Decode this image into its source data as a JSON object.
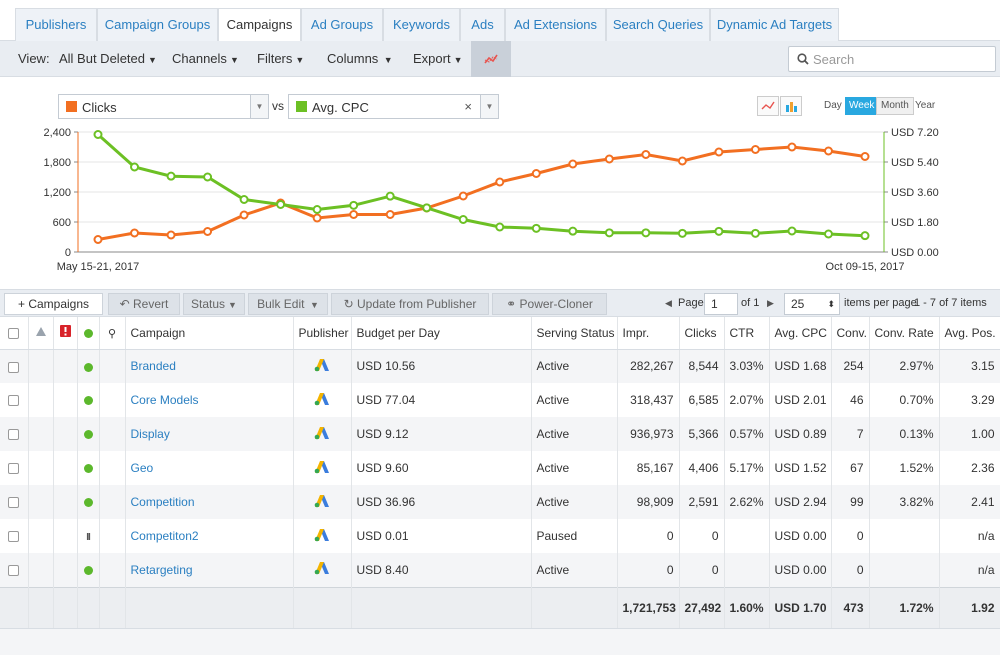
{
  "tabs": [
    "Publishers",
    "Campaign Groups",
    "Campaigns",
    "Ad Groups",
    "Keywords",
    "Ads",
    "Ad Extensions",
    "Search Queries",
    "Dynamic Ad Targets"
  ],
  "active_tab": "Campaigns",
  "toolbar": {
    "view_label": "View:",
    "view_value": "All But Deleted",
    "channels": "Channels",
    "filters": "Filters",
    "columns": "Columns",
    "export": "Export",
    "search_placeholder": "Search"
  },
  "chart_controls": {
    "metric1": "Clicks",
    "vs": "vs",
    "metric2": "Avg. CPC",
    "periods": [
      "Day",
      "Week",
      "Month",
      "Year"
    ],
    "active_period": "Week",
    "colors": {
      "metric1": "#f26f21",
      "metric2": "#6cc024"
    }
  },
  "chart_data": {
    "type": "line",
    "x_start_label": "May 15-21, 2017",
    "x_end_label": "Oct 09-15, 2017",
    "left_axis": {
      "ticks": [
        "2,400",
        "1,800",
        "1,200",
        "600",
        "0"
      ],
      "range": [
        0,
        2400
      ]
    },
    "right_axis": {
      "ticks": [
        "USD 7.20",
        "USD 5.40",
        "USD 3.60",
        "USD 1.80",
        "USD 0.00"
      ],
      "range": [
        0,
        7.2
      ]
    },
    "series": [
      {
        "name": "Clicks",
        "axis": "left",
        "color": "#f26f21",
        "values": [
          250,
          380,
          340,
          410,
          740,
          980,
          680,
          750,
          750,
          880,
          1120,
          1400,
          1570,
          1760,
          1860,
          1950,
          1820,
          2000,
          2050,
          2100,
          2020,
          1910
        ]
      },
      {
        "name": "Avg. CPC",
        "axis": "right",
        "color": "#6cc024",
        "values": [
          7.05,
          5.1,
          4.55,
          4.5,
          3.15,
          2.85,
          2.55,
          2.8,
          3.35,
          2.65,
          1.95,
          1.5,
          1.42,
          1.25,
          1.15,
          1.15,
          1.12,
          1.24,
          1.12,
          1.26,
          1.08,
          0.98
        ]
      }
    ]
  },
  "grid_toolbar": {
    "add": "Campaigns",
    "revert": "Revert",
    "status": "Status",
    "bulk_edit": "Bulk Edit",
    "update": "Update from Publisher",
    "cloner": "Power-Cloner",
    "page_label": "Page",
    "page_value": "1",
    "of_label": "of 1",
    "per_page_value": "25",
    "per_page_label": "items per page",
    "range_label": "1 - 7 of 7 items"
  },
  "table": {
    "headers": [
      "Campaign",
      "Publisher",
      "Budget per Day",
      "Serving Status",
      "Impr.",
      "Clicks",
      "CTR",
      "Avg. CPC",
      "Conv.",
      "Conv. Rate",
      "Avg. Pos."
    ],
    "rows": [
      {
        "status": "active",
        "name": "Branded",
        "budget": "USD 10.56",
        "serving": "Active",
        "impr": "282,267",
        "clicks": "8,544",
        "ctr": "3.03%",
        "cpc": "USD 1.68",
        "conv": "254",
        "conv_rate": "2.97%",
        "pos": "3.15"
      },
      {
        "status": "active",
        "name": "Core Models",
        "budget": "USD 77.04",
        "serving": "Active",
        "impr": "318,437",
        "clicks": "6,585",
        "ctr": "2.07%",
        "cpc": "USD 2.01",
        "conv": "46",
        "conv_rate": "0.70%",
        "pos": "3.29"
      },
      {
        "status": "active",
        "name": "Display",
        "budget": "USD 9.12",
        "serving": "Active",
        "impr": "936,973",
        "clicks": "5,366",
        "ctr": "0.57%",
        "cpc": "USD 0.89",
        "conv": "7",
        "conv_rate": "0.13%",
        "pos": "1.00"
      },
      {
        "status": "active",
        "name": "Geo",
        "budget": "USD 9.60",
        "serving": "Active",
        "impr": "85,167",
        "clicks": "4,406",
        "ctr": "5.17%",
        "cpc": "USD 1.52",
        "conv": "67",
        "conv_rate": "1.52%",
        "pos": "2.36"
      },
      {
        "status": "active",
        "name": "Competition",
        "budget": "USD 36.96",
        "serving": "Active",
        "impr": "98,909",
        "clicks": "2,591",
        "ctr": "2.62%",
        "cpc": "USD 2.94",
        "conv": "99",
        "conv_rate": "3.82%",
        "pos": "2.41"
      },
      {
        "status": "paused",
        "name": "Competiton2",
        "budget": "USD 0.01",
        "serving": "Paused",
        "impr": "0",
        "clicks": "0",
        "ctr": "",
        "cpc": "USD 0.00",
        "conv": "0",
        "conv_rate": "",
        "pos": "n/a"
      },
      {
        "status": "active",
        "name": "Retargeting",
        "budget": "USD 8.40",
        "serving": "Active",
        "impr": "0",
        "clicks": "0",
        "ctr": "",
        "cpc": "USD 0.00",
        "conv": "0",
        "conv_rate": "",
        "pos": "n/a"
      }
    ],
    "totals": {
      "impr": "1,721,753",
      "clicks": "27,492",
      "ctr": "1.60%",
      "cpc": "USD 1.70",
      "conv": "473",
      "conv_rate": "1.72%",
      "pos": "1.92"
    }
  }
}
